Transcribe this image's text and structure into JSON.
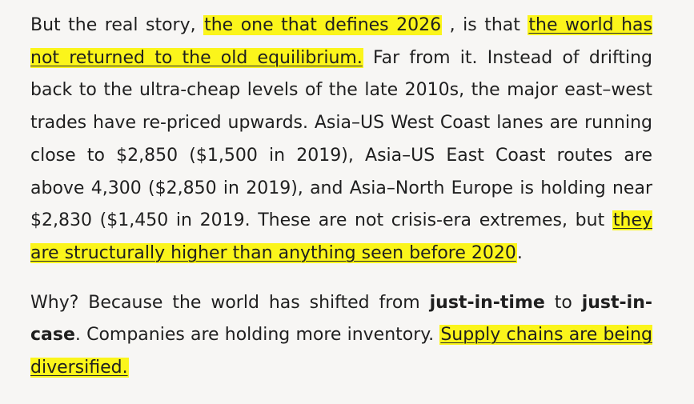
{
  "article": {
    "p1": {
      "s1": "But the real story, ",
      "h1": "the one that defines 2026",
      "s2": " , is that ",
      "h2": "the world has not returned to the old equilibrium.",
      "s3": " Far from it. Instead of drifting back to the ultra-cheap levels of the late 2010s, the major east–west trades have re-priced upwards. Asia–US West Coast lanes are running close to $2,850 ($1,500 in 2019), Asia–US East Coast routes are above 4,300 ($2,850 in 2019), and Asia–North Europe is holding near $2,830 ($1,450 in 2019. These are not crisis-era extremes, but ",
      "h3": "they are structurally higher than anything seen before 2020",
      "s4": "."
    },
    "p2": {
      "s1": "Why? Because the world has shifted from ",
      "b1": "just-in-time",
      "s2": " to ",
      "b2": "just-in-case",
      "s3": ". Companies are holding more inventory. ",
      "h1": "Supply chains are being diversified."
    }
  },
  "colors": {
    "highlight": "#fbf51b",
    "text": "#1f1f1f",
    "background": "#f7f6f4"
  }
}
